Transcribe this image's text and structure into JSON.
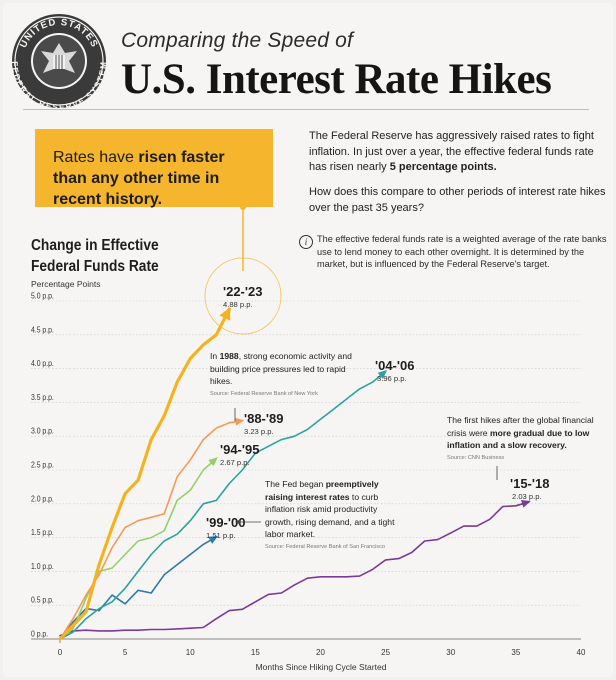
{
  "header": {
    "seal_text_top": "UNITED STATES",
    "seal_text_bottom": "FEDERAL RESERVE SYSTEM",
    "subtitle": "Comparing the Speed of",
    "title": "U.S. Interest Rate Hikes"
  },
  "callout": {
    "text_a": "Rates have ",
    "text_bold": "risen faster than any other time in recent history.",
    "text_plain2": ""
  },
  "intro": {
    "p1_a": "The Federal Reserve has aggressively raised rates to fight inflation. In just over a year, the effective federal funds rate has risen nearly ",
    "p1_bold": "5 percentage points.",
    "p2": "How does this compare to other periods of interest rate hikes over the past 35 years?"
  },
  "info": {
    "icon": "i",
    "text": "The effective federal funds rate is a weighted average of the rate banks use to lend money to each other overnight. It is determined by the market, but is influenced by the Federal Reserve's target."
  },
  "colors": {
    "c2223": "#f5b21f",
    "c8889": "#f59a57",
    "c9495": "#8fd26a",
    "c0406": "#2aa3a0",
    "c9900": "#2f7aa8",
    "c1518": "#7a3a9c",
    "grid": "#c9c9c9",
    "accent": "#f5b52d"
  },
  "chart_data": {
    "type": "line",
    "title": "Change in Effective Federal Funds Rate",
    "ylabel": "Percentage Points",
    "xlabel": "Months Since Hiking Cycle Started",
    "xlim": [
      0,
      40
    ],
    "ylim": [
      0,
      5.0
    ],
    "x_ticks": [
      "0",
      "5",
      "10",
      "15",
      "20",
      "25",
      "30",
      "35",
      "40"
    ],
    "y_ticks": [
      "0 p.p.",
      "0.5 p.p.",
      "1.0 p.p.",
      "1.5 p.p.",
      "2.0 p.p.",
      "2.5 p.p.",
      "3.0 p.p.",
      "3.5 p.p.",
      "4.0 p.p.",
      "4.5 p.p.",
      "5.0 p.p."
    ],
    "series": [
      {
        "name": "'15-'18",
        "final_label": "2.03 p.p.",
        "color_key": "c1518",
        "x": [
          0,
          1,
          2,
          3,
          4,
          5,
          6,
          7,
          8,
          9,
          10,
          11,
          12,
          13,
          14,
          15,
          16,
          17,
          18,
          19,
          20,
          21,
          22,
          23,
          24,
          25,
          26,
          27,
          28,
          29,
          30,
          31,
          32,
          33,
          34,
          35,
          36
        ],
        "y": [
          0.05,
          0.12,
          0.13,
          0.12,
          0.12,
          0.13,
          0.13,
          0.14,
          0.14,
          0.15,
          0.16,
          0.17,
          0.3,
          0.42,
          0.44,
          0.55,
          0.66,
          0.68,
          0.8,
          0.9,
          0.92,
          0.92,
          0.92,
          0.93,
          1.03,
          1.17,
          1.19,
          1.28,
          1.45,
          1.47,
          1.57,
          1.67,
          1.67,
          1.77,
          1.96,
          1.97,
          2.03
        ]
      },
      {
        "name": "'99-'00",
        "final_label": "1.51 p.p.",
        "color_key": "c9900",
        "x": [
          0,
          1,
          2,
          3,
          4,
          5,
          6,
          7,
          8,
          9,
          10,
          11,
          12
        ],
        "y": [
          0,
          0.25,
          0.45,
          0.42,
          0.65,
          0.52,
          0.72,
          0.68,
          0.95,
          1.1,
          1.25,
          1.4,
          1.51
        ]
      },
      {
        "name": "'94-'95",
        "final_label": "2.67 p.p.",
        "color_key": "c9495",
        "x": [
          0,
          1,
          2,
          3,
          4,
          5,
          6,
          7,
          8,
          9,
          10,
          11,
          12
        ],
        "y": [
          0,
          0.15,
          0.6,
          1.0,
          1.05,
          1.25,
          1.45,
          1.5,
          1.6,
          2.05,
          2.2,
          2.5,
          2.67
        ]
      },
      {
        "name": "'88-'89",
        "final_label": "3.23 p.p.",
        "color_key": "c8889",
        "x": [
          0,
          1,
          2,
          3,
          4,
          5,
          6,
          7,
          8,
          9,
          10,
          11,
          12,
          13,
          14
        ],
        "y": [
          0,
          0.3,
          0.65,
          0.95,
          1.35,
          1.65,
          1.75,
          1.8,
          1.85,
          2.4,
          2.65,
          2.95,
          3.12,
          3.2,
          3.23
        ]
      },
      {
        "name": "'04-'06",
        "final_label": "3.96 p.p.",
        "color_key": "c0406",
        "x": [
          0,
          1,
          2,
          3,
          4,
          5,
          6,
          7,
          8,
          9,
          10,
          11,
          12,
          13,
          14,
          15,
          16,
          17,
          18,
          19,
          20,
          21,
          22,
          23,
          24,
          25
        ],
        "y": [
          0,
          0.1,
          0.3,
          0.45,
          0.55,
          0.75,
          1.0,
          1.25,
          1.45,
          1.55,
          1.75,
          2.0,
          2.05,
          2.3,
          2.5,
          2.75,
          2.85,
          2.95,
          3.0,
          3.1,
          3.25,
          3.4,
          3.55,
          3.7,
          3.8,
          3.96
        ]
      },
      {
        "name": "'22-'23",
        "final_label": "4.88 p.p.",
        "color_key": "c2223",
        "x": [
          0,
          1,
          2,
          3,
          4,
          5,
          6,
          7,
          8,
          9,
          10,
          11,
          12,
          13
        ],
        "y": [
          0,
          0.2,
          0.4,
          1.1,
          1.65,
          2.15,
          2.35,
          2.95,
          3.3,
          3.8,
          4.15,
          4.35,
          4.5,
          4.88
        ]
      }
    ],
    "annotations": [
      {
        "id": "a88",
        "bold": "1988",
        "pre": "In ",
        "post": ", strong economic activity and building price pressures led to rapid hikes.",
        "source": "Source: Federal Reserve Bank of New York"
      },
      {
        "id": "a99",
        "pre": "The Fed began ",
        "bold": "preemptively raising interest rates",
        "post": " to curb inflation risk amid productivity growth, rising demand, and a tight labor market.",
        "source": "Source: Federal Reserve Bank of San Francisco"
      },
      {
        "id": "a15",
        "pre": "The first hikes after the global financial crisis were ",
        "bold": "more gradual due to low inflation and a slow recovery.",
        "post": "",
        "source": "Source: CNN Business"
      }
    ]
  }
}
